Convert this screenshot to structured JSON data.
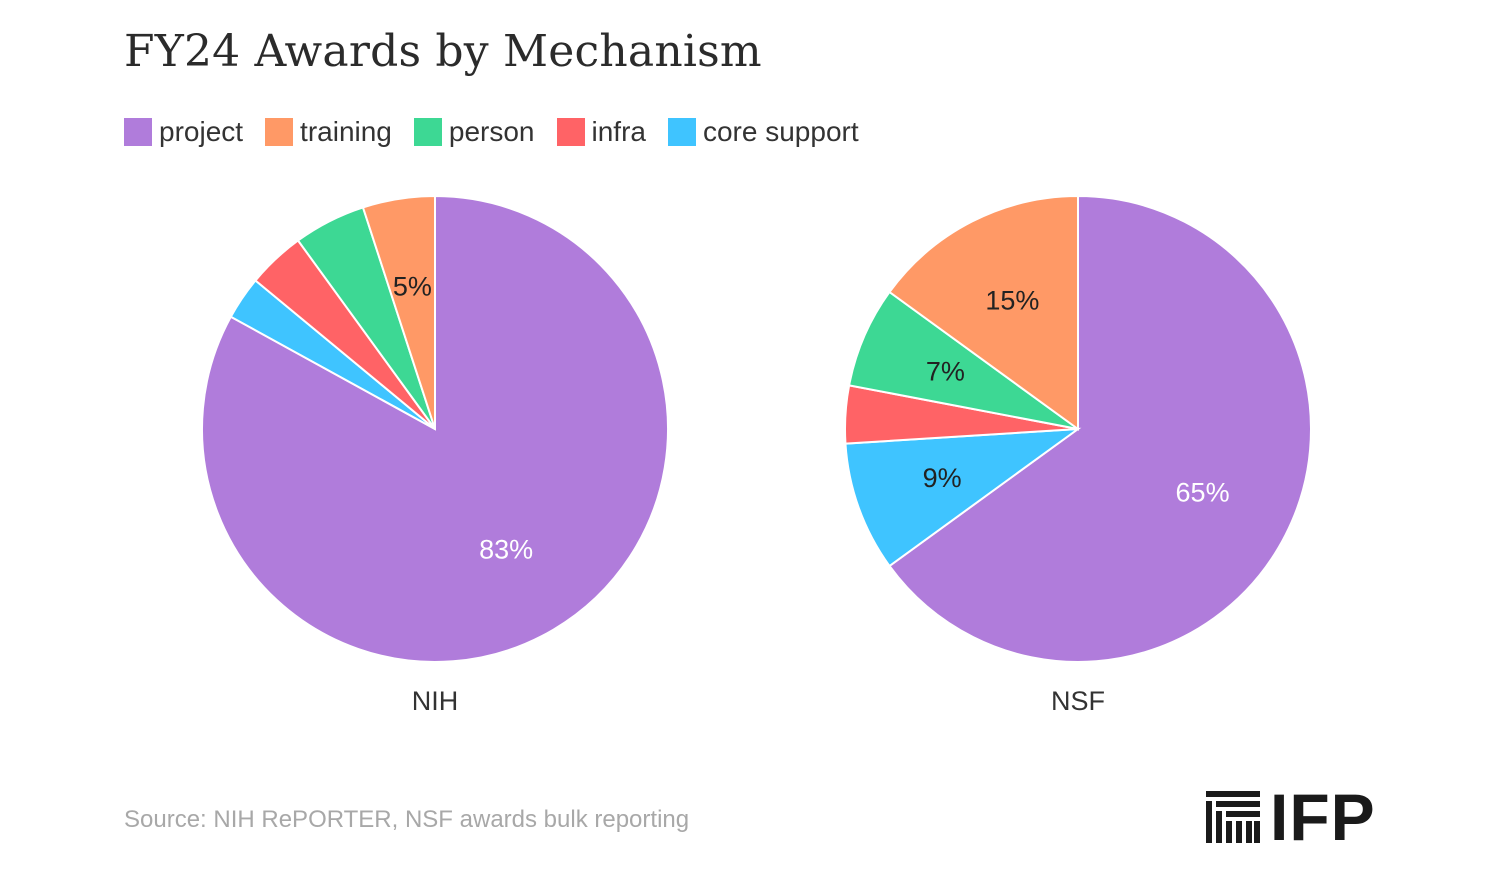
{
  "title": "FY24 Awards by Mechanism",
  "legend": [
    {
      "label": "project",
      "color": "#B07CDB"
    },
    {
      "label": "training",
      "color": "#FF9966"
    },
    {
      "label": "person",
      "color": "#3DD894"
    },
    {
      "label": "infra",
      "color": "#FF6366"
    },
    {
      "label": "core support",
      "color": "#3FC4FF"
    }
  ],
  "chart_data": [
    {
      "type": "pie",
      "name": "NIH",
      "categories": [
        "project",
        "training",
        "person",
        "infra",
        "core support"
      ],
      "values": [
        83,
        5,
        5,
        4,
        3
      ],
      "labels": [
        "83%",
        "5%",
        "",
        "",
        ""
      ],
      "label_colors": [
        "#ffffff",
        "#222222",
        "#222222",
        "#222222",
        "#222222"
      ]
    },
    {
      "type": "pie",
      "name": "NSF",
      "categories": [
        "project",
        "training",
        "person",
        "infra",
        "core support"
      ],
      "values": [
        65,
        15,
        7,
        4,
        9
      ],
      "labels": [
        "65%",
        "15%",
        "7%",
        "",
        "9%"
      ],
      "label_colors": [
        "#ffffff",
        "#222222",
        "#222222",
        "#222222",
        "#222222"
      ]
    }
  ],
  "source": "Source: NIH RePORTER, NSF awards bulk reporting",
  "logo": {
    "text": "IFP",
    "icon": "ifp-columns-icon"
  }
}
